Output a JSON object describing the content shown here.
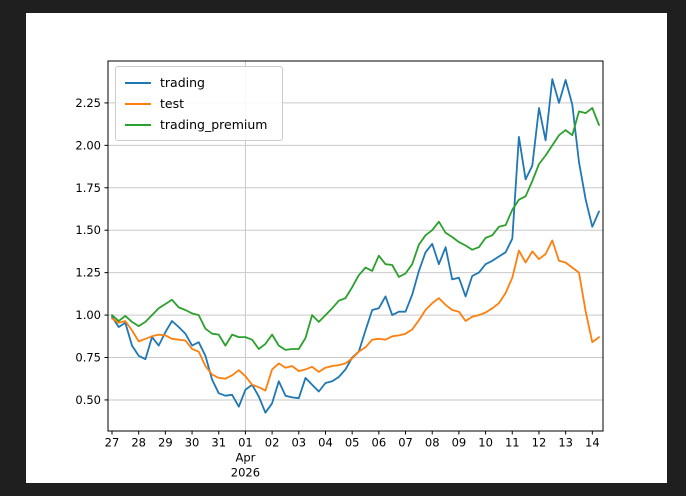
{
  "figure": {
    "surround_color": "#1f1f1f",
    "background_color": "#ffffff"
  },
  "chart_data": {
    "type": "line",
    "title": "",
    "xlabel": "",
    "ylabel": "",
    "x_unit": "days since 2026-03-27 00:00",
    "xlim": [
      -0.15,
      18.4
    ],
    "ylim": [
      0.317,
      2.497
    ],
    "grid": {
      "horizontal": true,
      "vertical_at_ticks": [
        5
      ],
      "color": "#c9c9c9"
    },
    "legend": {
      "position": "upper-left",
      "entries": [
        "trading",
        "test",
        "trading_premium"
      ]
    },
    "yticks": [
      0.5,
      0.75,
      1.0,
      1.25,
      1.5,
      1.75,
      2.0,
      2.25
    ],
    "ytick_labels": [
      "0.50",
      "0.75",
      "1.00",
      "1.25",
      "1.50",
      "1.75",
      "2.00",
      "2.25"
    ],
    "xticks": [
      0,
      1,
      2,
      3,
      4,
      5,
      6,
      7,
      8,
      9,
      10,
      11,
      12,
      13,
      14,
      15,
      16,
      17,
      18
    ],
    "xtick_labels": [
      "27",
      "28",
      "29",
      "30",
      "31",
      "01",
      "02",
      "03",
      "04",
      "05",
      "06",
      "07",
      "08",
      "09",
      "10",
      "11",
      "12",
      "13",
      "14"
    ],
    "month_label": "Apr",
    "year_label": "2026",
    "month_tick_value": 5,
    "x": [
      0,
      0.25,
      0.5,
      0.75,
      1,
      1.25,
      1.5,
      1.75,
      2,
      2.25,
      2.5,
      2.75,
      3,
      3.25,
      3.5,
      3.75,
      4,
      4.25,
      4.5,
      4.75,
      5,
      5.25,
      5.5,
      5.75,
      6,
      6.25,
      6.5,
      6.75,
      7,
      7.25,
      7.5,
      7.75,
      8,
      8.25,
      8.5,
      8.75,
      9,
      9.25,
      9.5,
      9.75,
      10,
      10.25,
      10.5,
      10.75,
      11,
      11.25,
      11.5,
      11.75,
      12,
      12.25,
      12.5,
      12.75,
      13,
      13.25,
      13.5,
      13.75,
      14,
      14.25,
      14.5,
      14.75,
      15,
      15.25,
      15.5,
      15.75,
      16,
      16.25,
      16.5,
      16.75,
      17,
      17.25,
      17.5,
      17.75,
      18,
      18.25
    ],
    "series": [
      {
        "name": "trading",
        "color": "#1f77b4",
        "values": [
          0.99,
          0.93,
          0.955,
          0.82,
          0.76,
          0.74,
          0.87,
          0.82,
          0.9,
          0.965,
          0.93,
          0.89,
          0.82,
          0.84,
          0.76,
          0.62,
          0.54,
          0.525,
          0.53,
          0.46,
          0.56,
          0.59,
          0.52,
          0.425,
          0.48,
          0.61,
          0.525,
          0.515,
          0.51,
          0.63,
          0.59,
          0.55,
          0.6,
          0.61,
          0.635,
          0.68,
          0.75,
          0.785,
          0.91,
          1.03,
          1.04,
          1.11,
          1.0,
          1.02,
          1.02,
          1.12,
          1.26,
          1.37,
          1.42,
          1.3,
          1.4,
          1.21,
          1.22,
          1.11,
          1.23,
          1.25,
          1.3,
          1.32,
          1.345,
          1.37,
          1.45,
          2.05,
          1.8,
          1.88,
          2.22,
          2.03,
          2.39,
          2.25,
          2.385,
          2.24,
          1.9,
          1.68,
          1.52,
          1.61
        ]
      },
      {
        "name": "test",
        "color": "#ff7f0e",
        "values": [
          0.98,
          0.955,
          0.965,
          0.91,
          0.845,
          0.86,
          0.875,
          0.885,
          0.88,
          0.86,
          0.855,
          0.85,
          0.8,
          0.785,
          0.7,
          0.65,
          0.63,
          0.625,
          0.645,
          0.675,
          0.64,
          0.59,
          0.575,
          0.555,
          0.68,
          0.715,
          0.69,
          0.7,
          0.67,
          0.68,
          0.695,
          0.665,
          0.69,
          0.7,
          0.705,
          0.715,
          0.745,
          0.785,
          0.81,
          0.855,
          0.86,
          0.855,
          0.875,
          0.88,
          0.89,
          0.915,
          0.97,
          1.03,
          1.07,
          1.1,
          1.06,
          1.03,
          1.02,
          0.965,
          0.99,
          1.0,
          1.015,
          1.04,
          1.07,
          1.13,
          1.22,
          1.38,
          1.31,
          1.375,
          1.33,
          1.36,
          1.44,
          1.32,
          1.31,
          1.28,
          1.25,
          1.02,
          0.84,
          0.87
        ]
      },
      {
        "name": "trading_premium",
        "color": "#2ca02c",
        "values": [
          1.0,
          0.965,
          0.995,
          0.96,
          0.935,
          0.96,
          1.0,
          1.04,
          1.065,
          1.09,
          1.045,
          1.03,
          1.01,
          1.0,
          0.92,
          0.89,
          0.885,
          0.82,
          0.885,
          0.87,
          0.87,
          0.855,
          0.8,
          0.83,
          0.885,
          0.82,
          0.795,
          0.8,
          0.8,
          0.865,
          1.0,
          0.96,
          1.0,
          1.04,
          1.085,
          1.1,
          1.165,
          1.235,
          1.28,
          1.26,
          1.35,
          1.3,
          1.295,
          1.225,
          1.245,
          1.3,
          1.415,
          1.47,
          1.5,
          1.55,
          1.485,
          1.46,
          1.43,
          1.41,
          1.385,
          1.4,
          1.455,
          1.47,
          1.52,
          1.53,
          1.62,
          1.68,
          1.7,
          1.79,
          1.89,
          1.94,
          2.0,
          2.06,
          2.09,
          2.06,
          2.2,
          2.19,
          2.22,
          2.12
        ]
      }
    ],
    "style": {
      "axis_color": "#000000",
      "tick_label_color": "#000000",
      "line_width": 1.8
    }
  }
}
